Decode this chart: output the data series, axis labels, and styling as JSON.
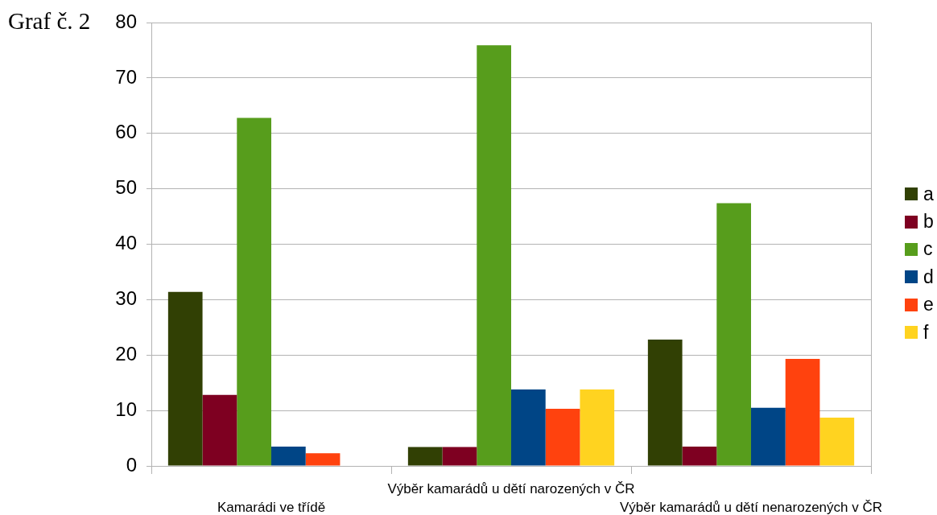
{
  "chart_data": {
    "type": "bar",
    "title": "Graf č. 2",
    "categories": [
      "Kamarádi ve třídě",
      "Výběr kamarádů u dětí narozených v ČR",
      "Výběr kamarádů u dětí nenarozených v ČR"
    ],
    "series": [
      {
        "name": "a",
        "color": "#314004",
        "values": [
          31.4,
          3.4,
          22.8
        ]
      },
      {
        "name": "b",
        "color": "#7e0021",
        "values": [
          12.8,
          3.4,
          3.5
        ]
      },
      {
        "name": "c",
        "color": "#579d1c",
        "values": [
          62.8,
          75.9,
          47.4
        ]
      },
      {
        "name": "d",
        "color": "#004586",
        "values": [
          3.5,
          13.8,
          10.5
        ]
      },
      {
        "name": "e",
        "color": "#ff420e",
        "values": [
          2.3,
          10.3,
          19.3
        ]
      },
      {
        "name": "f",
        "color": "#ffd320",
        "values": [
          null,
          13.8,
          8.7
        ]
      }
    ],
    "ylim": [
      0,
      80
    ],
    "yticks": [
      0,
      10,
      20,
      30,
      40,
      50,
      60,
      70,
      80
    ],
    "grid": "y",
    "legend": "right"
  }
}
